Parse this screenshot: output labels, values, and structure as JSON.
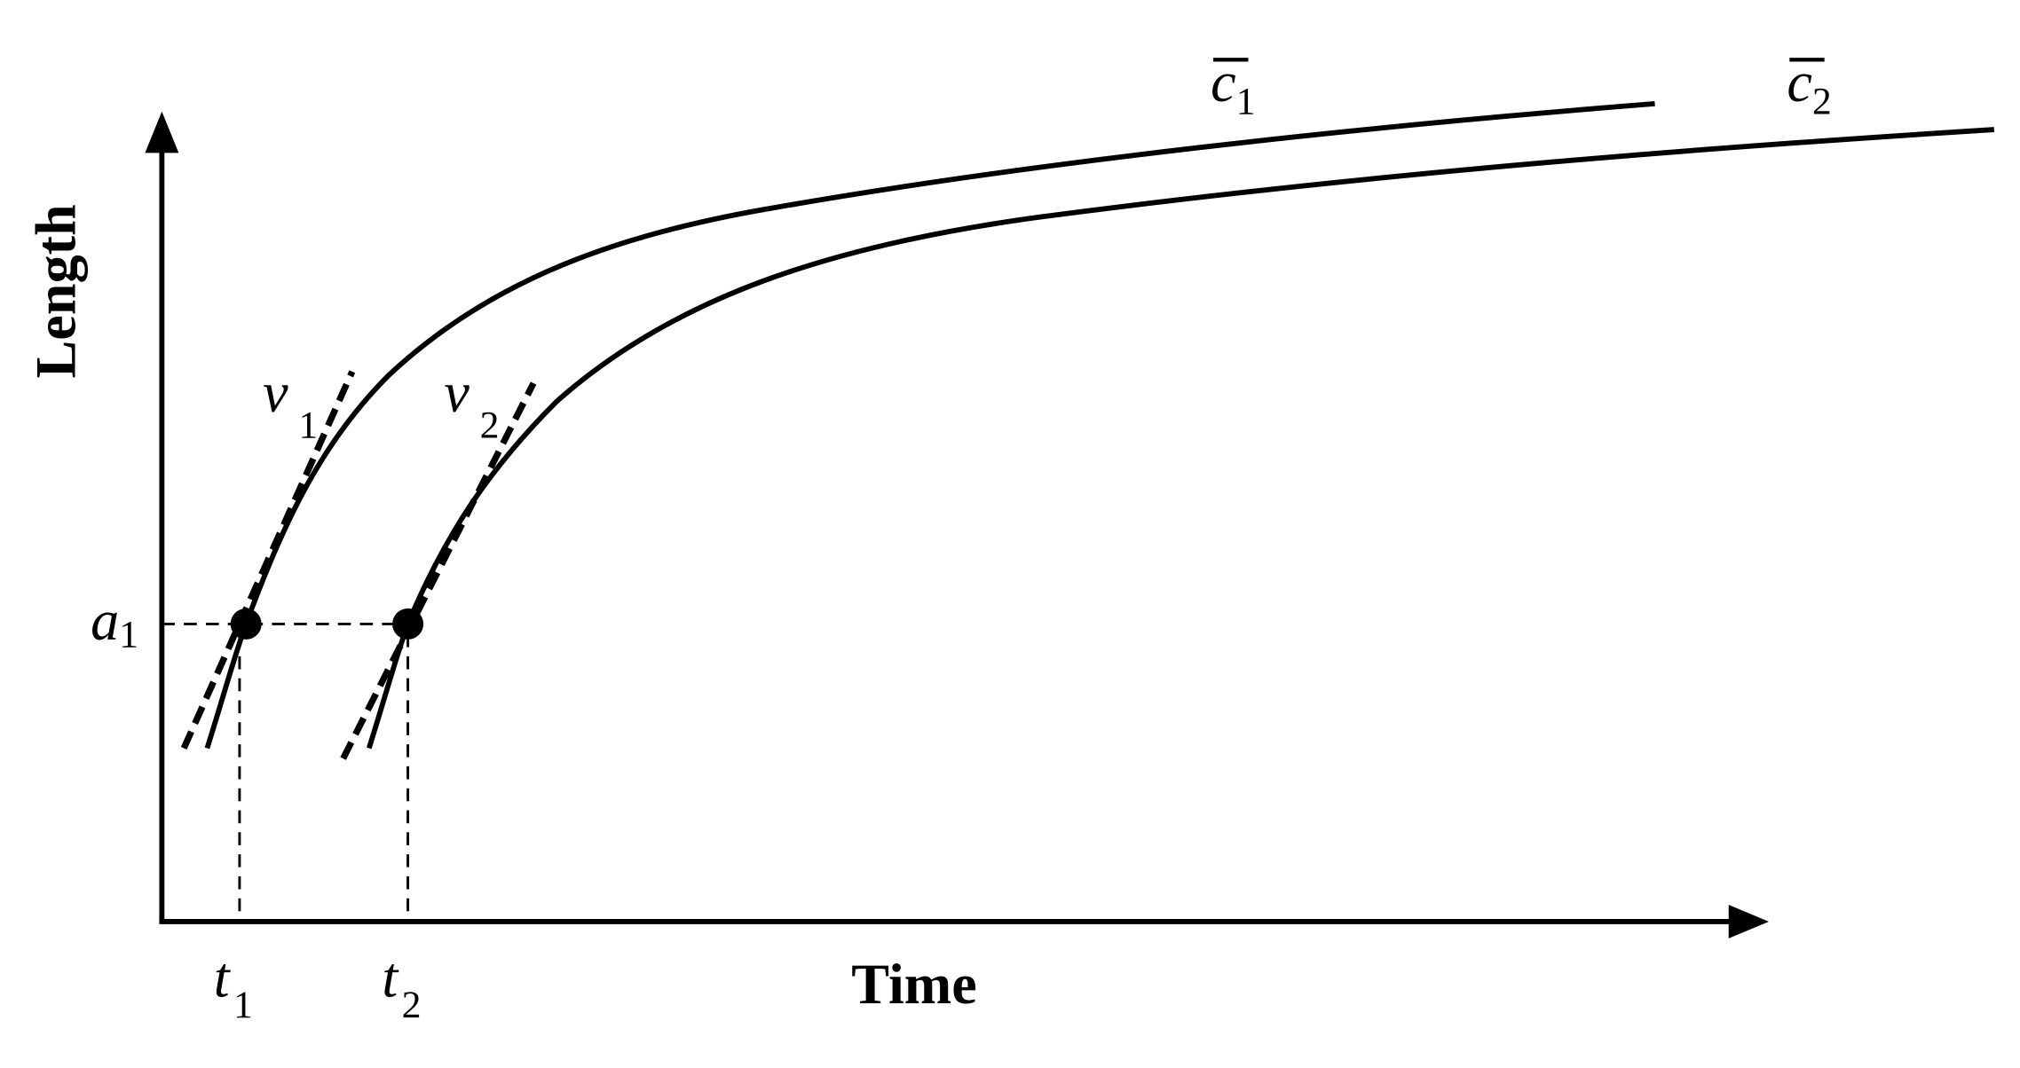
{
  "axes": {
    "y_label": "Length",
    "x_label": "Time"
  },
  "curves": [
    {
      "label": "c",
      "subscript": "1"
    },
    {
      "label": "c",
      "subscript": "2"
    }
  ],
  "tangents": [
    {
      "label": "v",
      "subscript": "1"
    },
    {
      "label": "v",
      "subscript": "2"
    }
  ],
  "point_label": {
    "label": "a",
    "subscript": "1"
  },
  "times": [
    {
      "label": "t",
      "subscript": "1"
    },
    {
      "label": "t",
      "subscript": "2"
    }
  ]
}
